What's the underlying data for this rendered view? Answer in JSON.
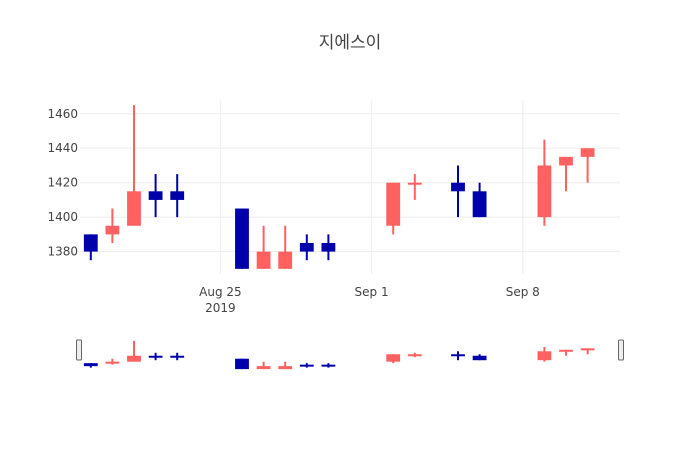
{
  "chart_data": {
    "type": "candlestick",
    "title": "지에스이",
    "increasing_color": "#ff6060",
    "decreasing_color": "#0000aa",
    "grid": true,
    "rangeslider": true,
    "x_ticks": [
      {
        "date": "2019-08-25",
        "label": "Aug 25",
        "sublabel": "2019"
      },
      {
        "date": "2019-09-01",
        "label": "Sep 1",
        "sublabel": ""
      },
      {
        "date": "2019-09-08",
        "label": "Sep 8",
        "sublabel": ""
      }
    ],
    "y_ticks": [
      1380,
      1400,
      1420,
      1440,
      1460
    ],
    "xlim": [
      "2019-08-19",
      "2019-09-12"
    ],
    "ylim": [
      1367,
      1468
    ],
    "candles": [
      {
        "date": "2019-08-19",
        "open": 1390,
        "high": 1390,
        "low": 1375,
        "close": 1380
      },
      {
        "date": "2019-08-20",
        "open": 1390,
        "high": 1405,
        "low": 1385,
        "close": 1395
      },
      {
        "date": "2019-08-21",
        "open": 1395,
        "high": 1465,
        "low": 1395,
        "close": 1415
      },
      {
        "date": "2019-08-22",
        "open": 1415,
        "high": 1425,
        "low": 1400,
        "close": 1410
      },
      {
        "date": "2019-08-23",
        "open": 1415,
        "high": 1425,
        "low": 1400,
        "close": 1410
      },
      {
        "date": "2019-08-26",
        "open": 1405,
        "high": 1405,
        "low": 1370,
        "close": 1370
      },
      {
        "date": "2019-08-27",
        "open": 1370,
        "high": 1395,
        "low": 1370,
        "close": 1380
      },
      {
        "date": "2019-08-28",
        "open": 1370,
        "high": 1395,
        "low": 1370,
        "close": 1380
      },
      {
        "date": "2019-08-29",
        "open": 1385,
        "high": 1390,
        "low": 1375,
        "close": 1380
      },
      {
        "date": "2019-08-30",
        "open": 1385,
        "high": 1390,
        "low": 1375,
        "close": 1380
      },
      {
        "date": "2019-09-02",
        "open": 1395,
        "high": 1420,
        "low": 1390,
        "close": 1420
      },
      {
        "date": "2019-09-03",
        "open": 1420,
        "high": 1425,
        "low": 1410,
        "close": 1420
      },
      {
        "date": "2019-09-05",
        "open": 1420,
        "high": 1430,
        "low": 1400,
        "close": 1415
      },
      {
        "date": "2019-09-06",
        "open": 1415,
        "high": 1420,
        "low": 1400,
        "close": 1400
      },
      {
        "date": "2019-09-09",
        "open": 1400,
        "high": 1445,
        "low": 1395,
        "close": 1430
      },
      {
        "date": "2019-09-10",
        "open": 1430,
        "high": 1435,
        "low": 1415,
        "close": 1435
      },
      {
        "date": "2019-09-11",
        "open": 1435,
        "high": 1440,
        "low": 1420,
        "close": 1440
      }
    ]
  }
}
